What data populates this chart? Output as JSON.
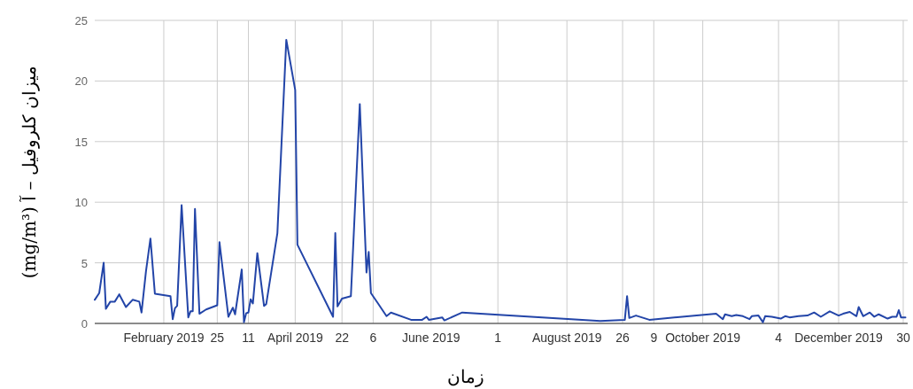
{
  "chart_data": {
    "type": "line",
    "xlabel": "زمان",
    "ylabel": "میزان کلروفیل – آ (mg/m³)",
    "x": [
      "2019-01-01",
      "2019-01-03",
      "2019-01-05",
      "2019-01-06",
      "2019-01-08",
      "2019-01-10",
      "2019-01-12",
      "2019-01-15",
      "2019-01-18",
      "2019-01-21",
      "2019-01-22",
      "2019-01-24",
      "2019-01-26",
      "2019-01-28",
      "2019-02-04",
      "2019-02-05",
      "2019-02-06",
      "2019-02-07",
      "2019-02-09",
      "2019-02-12",
      "2019-02-13",
      "2019-02-14",
      "2019-02-15",
      "2019-02-17",
      "2019-02-20",
      "2019-02-25",
      "2019-02-26",
      "2019-03-02",
      "2019-03-04",
      "2019-03-05",
      "2019-03-08",
      "2019-03-09",
      "2019-03-10",
      "2019-03-11",
      "2019-03-12",
      "2019-03-13",
      "2019-03-15",
      "2019-03-18",
      "2019-03-19",
      "2019-03-24",
      "2019-03-28",
      "2019-04-01",
      "2019-04-02",
      "2019-04-18",
      "2019-04-19",
      "2019-04-20",
      "2019-04-22",
      "2019-04-26",
      "2019-04-30",
      "2019-05-03",
      "2019-05-04",
      "2019-05-05",
      "2019-05-08",
      "2019-05-12",
      "2019-05-14",
      "2019-05-23",
      "2019-05-28",
      "2019-05-30",
      "2019-05-31",
      "2019-06-06",
      "2019-06-07",
      "2019-06-15",
      "2019-08-16",
      "2019-08-27",
      "2019-08-28",
      "2019-08-29",
      "2019-09-01",
      "2019-09-07",
      "2019-10-07",
      "2019-10-10",
      "2019-10-11",
      "2019-10-14",
      "2019-10-16",
      "2019-10-19",
      "2019-10-22",
      "2019-10-23",
      "2019-10-26",
      "2019-10-28",
      "2019-10-29",
      "2019-11-01",
      "2019-11-05",
      "2019-11-07",
      "2019-11-09",
      "2019-11-13",
      "2019-11-17",
      "2019-11-20",
      "2019-11-23",
      "2019-11-27",
      "2019-12-01",
      "2019-12-03",
      "2019-12-06",
      "2019-12-09",
      "2019-12-10",
      "2019-12-12",
      "2019-12-15",
      "2019-12-17",
      "2019-12-19",
      "2019-12-23",
      "2019-12-25",
      "2019-12-27",
      "2019-12-28",
      "2019-12-29",
      "2019-12-31"
    ],
    "series": [
      {
        "color": "#2345a8",
        "values": [
          1.95,
          2.5,
          5.0,
          1.2,
          1.8,
          1.8,
          2.4,
          1.35,
          1.95,
          1.8,
          0.9,
          4.3,
          7.0,
          2.45,
          2.25,
          0.35,
          1.25,
          1.45,
          9.75,
          0.5,
          1.0,
          1.0,
          9.45,
          0.8,
          1.15,
          1.5,
          6.7,
          0.55,
          1.3,
          0.75,
          4.45,
          0.1,
          0.85,
          0.9,
          2.0,
          1.65,
          5.8,
          1.45,
          1.6,
          7.45,
          23.4,
          19.25,
          6.5,
          0.55,
          7.45,
          1.4,
          2.05,
          2.25,
          18.1,
          4.2,
          5.9,
          2.5,
          1.7,
          0.6,
          0.9,
          0.3,
          0.3,
          0.55,
          0.3,
          0.5,
          0.25,
          0.9,
          0.2,
          0.3,
          2.25,
          0.45,
          0.65,
          0.3,
          0.8,
          0.35,
          0.75,
          0.6,
          0.7,
          0.6,
          0.35,
          0.6,
          0.65,
          0.1,
          0.6,
          0.55,
          0.4,
          0.6,
          0.5,
          0.6,
          0.65,
          0.9,
          0.55,
          1.0,
          0.65,
          0.8,
          0.95,
          0.6,
          1.35,
          0.6,
          0.9,
          0.55,
          0.75,
          0.4,
          0.55,
          0.55,
          1.1,
          0.5,
          0.5
        ]
      }
    ],
    "xlim": [
      "2019-01-01",
      "2020-01-01"
    ],
    "xticks": [
      {
        "value": "2019-02-01",
        "label": "February 2019"
      },
      {
        "value": "2019-02-25",
        "label": "25"
      },
      {
        "value": "2019-03-11",
        "label": "11"
      },
      {
        "value": "2019-04-01",
        "label": "April 2019"
      },
      {
        "value": "2019-04-22",
        "label": "22"
      },
      {
        "value": "2019-05-06",
        "label": "6"
      },
      {
        "value": "2019-06-01",
        "label": "June 2019"
      },
      {
        "value": "2019-07-01",
        "label": "1"
      },
      {
        "value": "2019-08-01",
        "label": "August 2019"
      },
      {
        "value": "2019-08-26",
        "label": "26"
      },
      {
        "value": "2019-09-09",
        "label": "9"
      },
      {
        "value": "2019-10-01",
        "label": "October 2019"
      },
      {
        "value": "2019-11-04",
        "label": "4"
      },
      {
        "value": "2019-12-01",
        "label": "December 2019"
      },
      {
        "value": "2019-12-30",
        "label": "30"
      }
    ],
    "ylim": [
      0,
      25
    ],
    "yticks": [
      0,
      5,
      10,
      15,
      20,
      25
    ],
    "grid": true
  }
}
